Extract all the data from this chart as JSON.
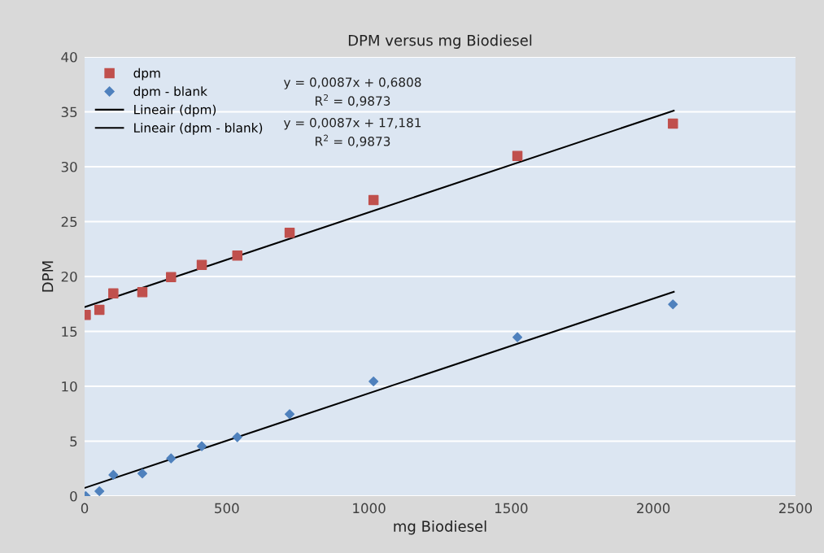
{
  "chart_data": {
    "type": "scatter",
    "title": "DPM versus mg Biodiesel",
    "xlabel": "mg Biodiesel",
    "ylabel": "DPM",
    "series": [
      {
        "name": "dpm",
        "marker": "square",
        "color": "#c0504d",
        "x": [
          4,
          52,
          101,
          203,
          304,
          412,
          537,
          721,
          1016,
          1522,
          2069
        ],
        "values": [
          16.5,
          16.96,
          18.47,
          18.57,
          19.95,
          21.06,
          21.9,
          23.98,
          26.96,
          30.99,
          33.93
        ]
      },
      {
        "name": "dpm - blank",
        "marker": "diamond",
        "color": "#4f81bd",
        "x": [
          4,
          52,
          101,
          203,
          304,
          412,
          537,
          721,
          1016,
          1522,
          2069
        ],
        "values": [
          0.0,
          0.44,
          1.93,
          2.05,
          3.43,
          4.54,
          5.36,
          7.46,
          10.44,
          14.47,
          17.46
        ]
      },
      {
        "name": "Lineair (dpm)",
        "type": "line",
        "marker": "none",
        "line_style": "solid",
        "color": "#000000",
        "x": [
          0,
          2072
        ],
        "values": [
          17.21,
          35.11
        ]
      },
      {
        "name": "Lineair (dpm - blank)",
        "type": "line",
        "marker": "none",
        "line_style": "solid",
        "color": "#000000",
        "x": [
          0,
          2072
        ],
        "values": [
          0.74,
          18.61
        ]
      }
    ],
    "annotations": [
      "y = 0,0087x + 0,6808",
      "R$^{2}$ = 0,9873",
      "y = 0,0087x + 17,181",
      "R$^{2}$ = 0,9873"
    ],
    "xlim": [
      0,
      2500
    ],
    "xticks": [
      0,
      500,
      1000,
      1500,
      2000,
      2500
    ],
    "ylim": [
      0,
      40
    ],
    "yticks": [
      0,
      5,
      10,
      15,
      20,
      25,
      30,
      35,
      40
    ],
    "grid": "y",
    "legend": "top left"
  }
}
